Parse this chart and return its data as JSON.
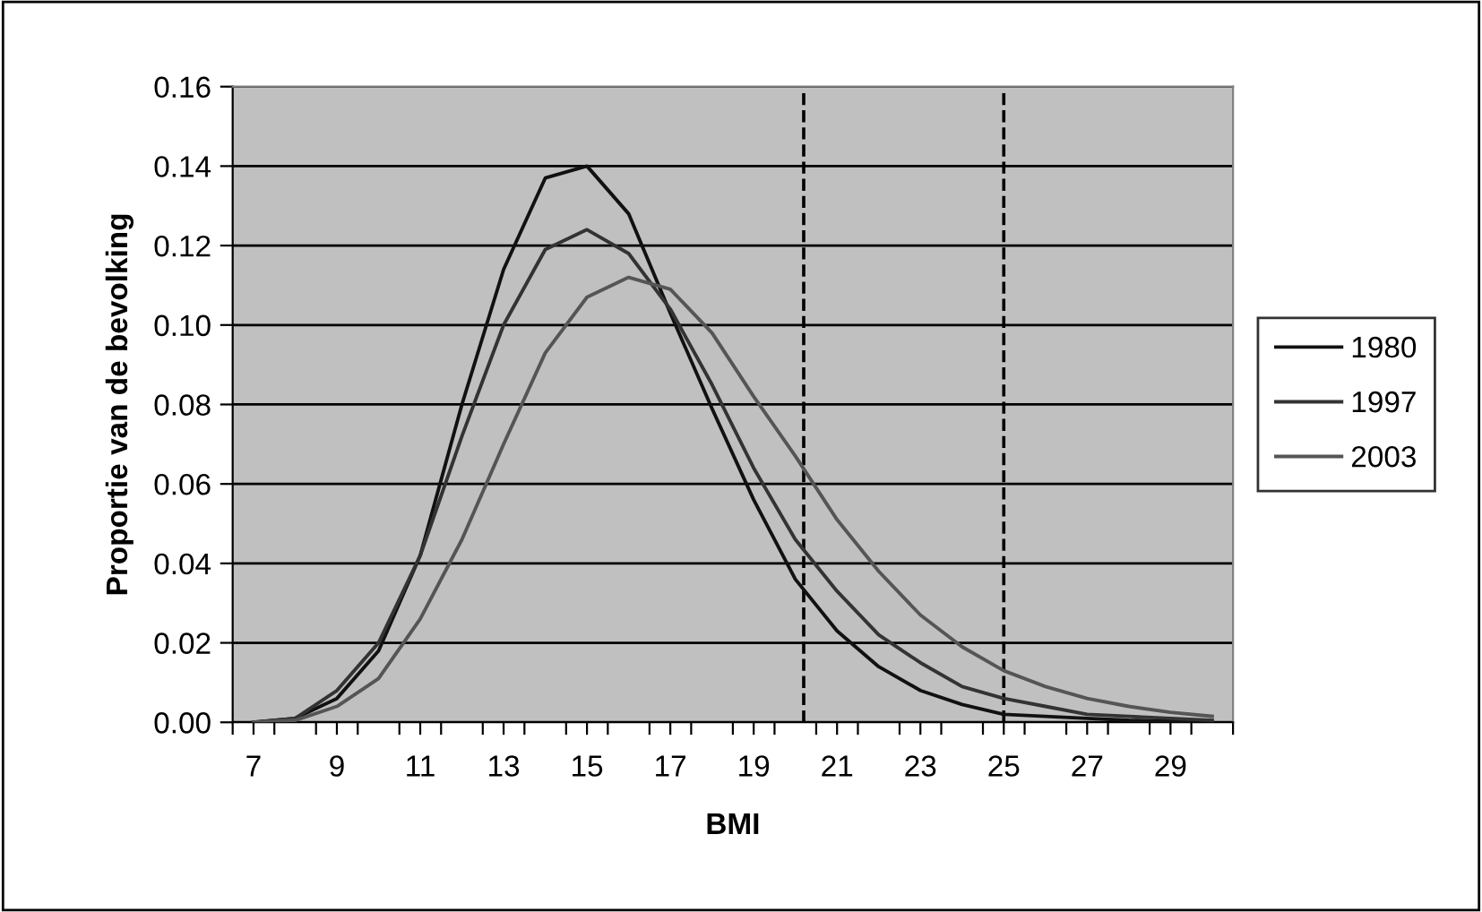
{
  "chart_data": {
    "type": "line",
    "xlabel": "BMI",
    "ylabel": "Proportie van de bevolking",
    "x": [
      7,
      8,
      9,
      10,
      11,
      12,
      13,
      14,
      15,
      16,
      17,
      18,
      19,
      20,
      21,
      22,
      23,
      24,
      25,
      26,
      27,
      28,
      29,
      30
    ],
    "series": [
      {
        "name": "1980",
        "color": "#111111",
        "values": [
          0,
          0.001,
          0.006,
          0.018,
          0.042,
          0.08,
          0.114,
          0.137,
          0.14,
          0.128,
          0.103,
          0.079,
          0.056,
          0.036,
          0.023,
          0.014,
          0.008,
          0.0045,
          0.002,
          0.0015,
          0.001,
          0.0005,
          0.0003,
          0.0002
        ]
      },
      {
        "name": "1997",
        "color": "#333333",
        "values": [
          0,
          0.001,
          0.008,
          0.02,
          0.042,
          0.072,
          0.1,
          0.119,
          0.124,
          0.118,
          0.104,
          0.085,
          0.064,
          0.046,
          0.033,
          0.022,
          0.015,
          0.009,
          0.006,
          0.004,
          0.002,
          0.0015,
          0.001,
          0.0005
        ]
      },
      {
        "name": "2003",
        "color": "#555555",
        "values": [
          0,
          0.0005,
          0.004,
          0.011,
          0.026,
          0.046,
          0.07,
          0.093,
          0.107,
          0.112,
          0.109,
          0.098,
          0.082,
          0.067,
          0.051,
          0.038,
          0.027,
          0.019,
          0.013,
          0.009,
          0.006,
          0.004,
          0.0025,
          0.0015
        ]
      }
    ],
    "xlim": [
      6.5,
      30.5
    ],
    "xticks": [
      {
        "value": 6.5,
        "label": null
      },
      7,
      {
        "value": 7.5,
        "label": null
      },
      {
        "value": 8.5,
        "label": null
      },
      9,
      {
        "value": 9.5,
        "label": null
      },
      {
        "value": 10.5,
        "label": null
      },
      11,
      {
        "value": 11.5,
        "label": null
      },
      {
        "value": 12.5,
        "label": null
      },
      13,
      {
        "value": 13.5,
        "label": null
      },
      {
        "value": 14.5,
        "label": null
      },
      15,
      {
        "value": 15.5,
        "label": null
      },
      {
        "value": 16.5,
        "label": null
      },
      17,
      {
        "value": 17.5,
        "label": null
      },
      {
        "value": 18.5,
        "label": null
      },
      19,
      {
        "value": 19.5,
        "label": null
      },
      {
        "value": 20.5,
        "label": null
      },
      21,
      {
        "value": 21.5,
        "label": null
      },
      {
        "value": 22.5,
        "label": null
      },
      23,
      {
        "value": 23.5,
        "label": null
      },
      {
        "value": 24.5,
        "label": null
      },
      25,
      {
        "value": 25.5,
        "label": null
      },
      {
        "value": 26.5,
        "label": null
      },
      27,
      {
        "value": 27.5,
        "label": null
      },
      {
        "value": 28.5,
        "label": null
      },
      29,
      {
        "value": 29.5,
        "label": null
      },
      {
        "value": 30.5,
        "label": null
      }
    ],
    "ylim": [
      0,
      0.16
    ],
    "yticks": [
      {
        "value": 0,
        "label": "0.00"
      },
      {
        "value": 0.02,
        "label": "0.02"
      },
      {
        "value": 0.04,
        "label": "0.04"
      },
      {
        "value": 0.06,
        "label": "0.06"
      },
      {
        "value": 0.08,
        "label": "0.08"
      },
      {
        "value": 0.1,
        "label": "0.10"
      },
      {
        "value": 0.12,
        "label": "0.12"
      },
      {
        "value": 0.14,
        "label": "0.14"
      },
      {
        "value": 0.16,
        "label": "0.16"
      }
    ],
    "ref_lines": [
      {
        "axis": "x",
        "value": 20.2,
        "color": "#000000",
        "line_style": "dashed"
      },
      {
        "axis": "x",
        "value": 25,
        "color": "#000000",
        "line_style": "dashed"
      }
    ],
    "grid": "y",
    "legend": "right",
    "marker": "none",
    "line_style": "solid"
  }
}
